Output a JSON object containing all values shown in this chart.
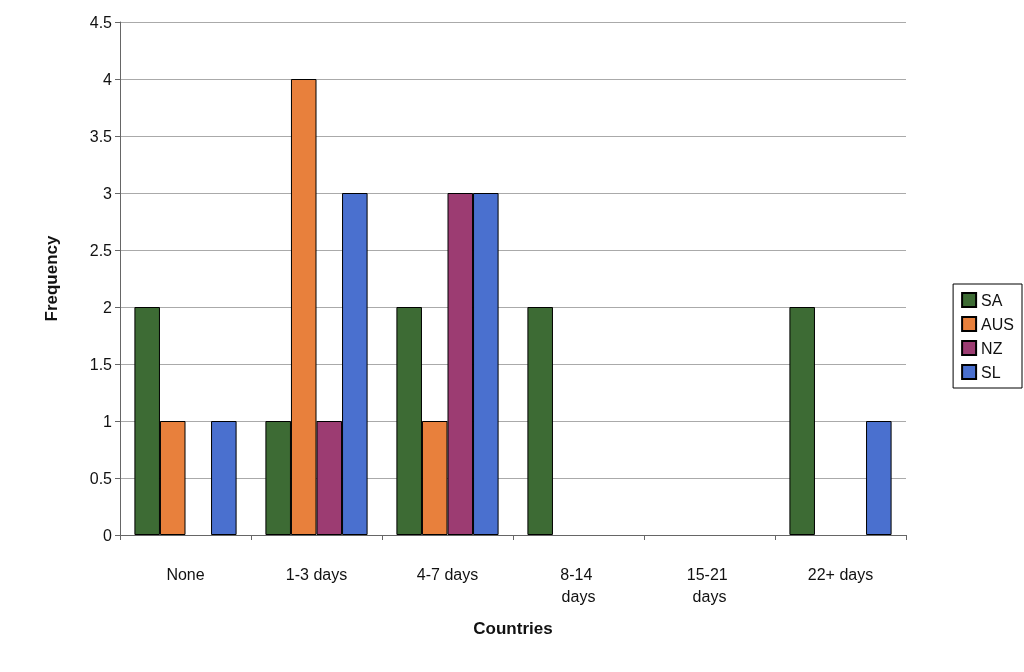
{
  "chart_data": {
    "type": "bar",
    "xlabel": "Countries",
    "ylabel": "Frequency",
    "categories": [
      "None",
      "1-3 days",
      "4-7 days",
      "8-14 days",
      "15-21 days",
      "22+ days"
    ],
    "series": [
      {
        "name": "SA",
        "color": "#3d6b34",
        "values": [
          2,
          1,
          2,
          2,
          0,
          2
        ]
      },
      {
        "name": "AUS",
        "color": "#e8803c",
        "values": [
          1,
          4,
          1,
          0,
          0,
          0
        ]
      },
      {
        "name": "NZ",
        "color": "#9c3c72",
        "values": [
          0,
          1,
          3,
          0,
          0,
          0
        ]
      },
      {
        "name": "SL",
        "color": "#4a70cf",
        "values": [
          1,
          3,
          3,
          0,
          0,
          1
        ]
      }
    ],
    "ylim": [
      0,
      4.5
    ],
    "yticks": [
      0,
      0.5,
      1,
      1.5,
      2,
      2.5,
      3,
      3.5,
      4,
      4.5
    ],
    "grid": "y",
    "legend": "right"
  }
}
